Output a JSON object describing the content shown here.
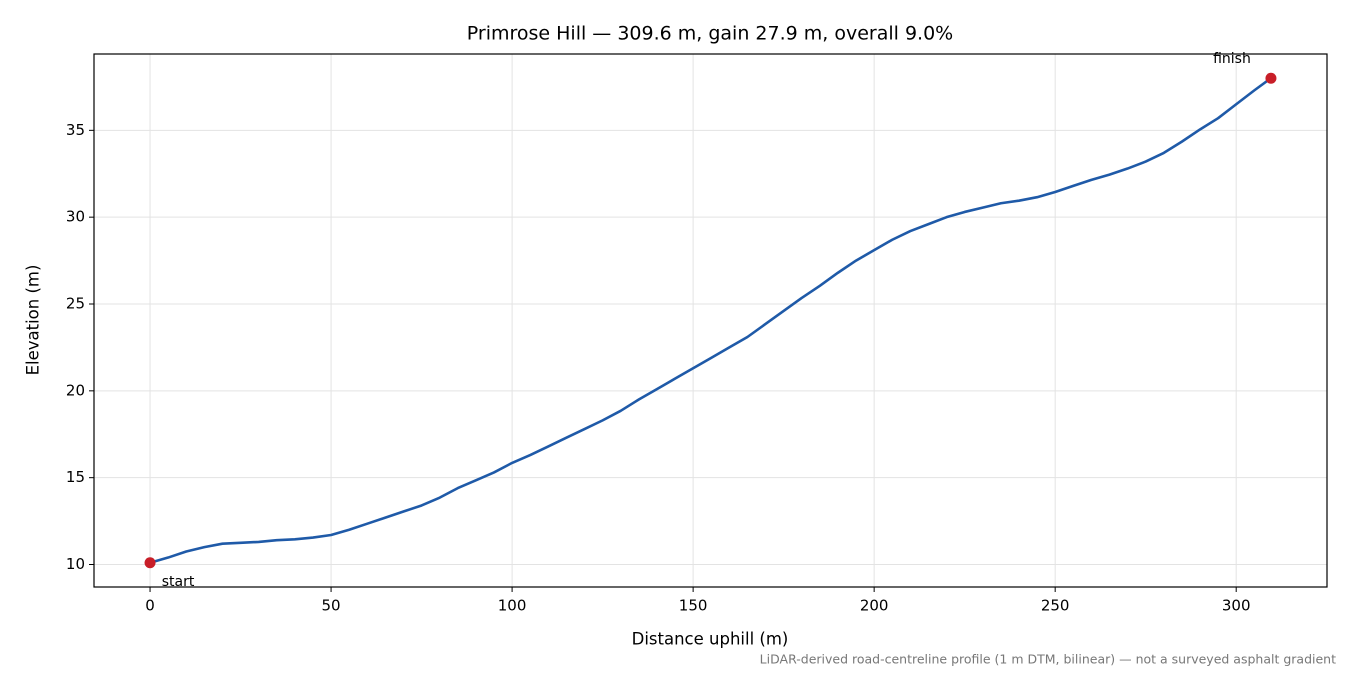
{
  "chart_data": {
    "type": "line",
    "title": "Primrose Hill — 309.6 m, gain 27.9 m, overall 9.0%",
    "x_label": "Distance uphill (m)",
    "y_label": "Elevation (m)",
    "note": "LiDAR-derived road-centreline profile (1 m DTM, bilinear) — not a surveyed asphalt gradient",
    "annotations": [
      "start",
      "finish"
    ],
    "color": "#1f5aa8",
    "marker_color": "#c81e28",
    "grid": true,
    "x": [
      0,
      5,
      10,
      15,
      20,
      25,
      30,
      35,
      40,
      45,
      50,
      55,
      60,
      65,
      70,
      75,
      80,
      85,
      90,
      95,
      100,
      105,
      110,
      115,
      120,
      125,
      130,
      135,
      140,
      145,
      150,
      155,
      160,
      165,
      170,
      175,
      180,
      185,
      190,
      195,
      200,
      205,
      210,
      215,
      220,
      225,
      230,
      235,
      240,
      245,
      250,
      255,
      260,
      265,
      270,
      275,
      280,
      285,
      290,
      295,
      300,
      305,
      309.6
    ],
    "values": [
      10.1,
      10.4,
      10.75,
      11.0,
      11.2,
      11.25,
      11.3,
      11.4,
      11.45,
      11.55,
      11.7,
      12.0,
      12.35,
      12.7,
      13.05,
      13.4,
      13.85,
      14.4,
      14.85,
      15.3,
      15.85,
      16.3,
      16.8,
      17.3,
      17.8,
      18.3,
      18.85,
      19.5,
      20.1,
      20.7,
      21.3,
      21.9,
      22.5,
      23.1,
      23.85,
      24.6,
      25.35,
      26.05,
      26.8,
      27.5,
      28.1,
      28.7,
      29.2,
      29.6,
      30.0,
      30.3,
      30.55,
      30.8,
      30.95,
      31.15,
      31.45,
      31.8,
      32.15,
      32.45,
      32.8,
      33.2,
      33.7,
      34.35,
      35.05,
      35.7,
      36.5,
      37.3,
      38.0
    ],
    "xlim": [
      -15.48,
      325.08
    ],
    "xticks": [
      0,
      50,
      100,
      150,
      200,
      250,
      300
    ],
    "ylim": [
      8.705,
      39.395
    ],
    "yticks": [
      10,
      15,
      20,
      25,
      30,
      35
    ]
  }
}
